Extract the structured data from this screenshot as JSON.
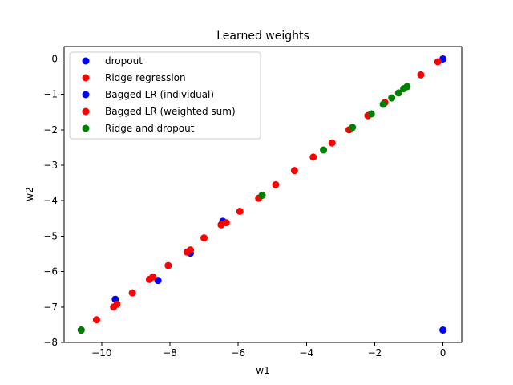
{
  "chart_data": {
    "type": "scatter",
    "title": "Learned weights",
    "xlabel": "w1",
    "ylabel": "w2",
    "xlim": [
      -11.1,
      0.55
    ],
    "ylim": [
      -8.0,
      0.35
    ],
    "xticks": [
      -10,
      -8,
      -6,
      -4,
      -2,
      0
    ],
    "yticks": [
      0,
      -1,
      -2,
      -3,
      -4,
      -5,
      -6,
      -7,
      -8
    ],
    "x_tick_labels": [
      "−10",
      "−8",
      "−6",
      "−4",
      "−2",
      "0"
    ],
    "y_tick_labels": [
      "0",
      "−1",
      "−2",
      "−3",
      "−4",
      "−5",
      "−6",
      "−7",
      "−8"
    ],
    "legend_position": "upper-left",
    "series": [
      {
        "name": "dropout",
        "color": "#0000ff",
        "points": [
          [
            0.0,
            0.0
          ],
          [
            0.0,
            -7.65
          ],
          [
            -6.45,
            -4.58
          ],
          [
            -7.4,
            -5.48
          ],
          [
            -8.35,
            -6.25
          ],
          [
            -9.6,
            -6.78
          ],
          [
            -10.6,
            -7.65
          ]
        ]
      },
      {
        "name": "Ridge regression",
        "color": "#ff0000",
        "points": [
          [
            -0.15,
            -0.08
          ],
          [
            -0.65,
            -0.45
          ],
          [
            -1.7,
            -1.23
          ],
          [
            -2.2,
            -1.6
          ],
          [
            -2.75,
            -2.0
          ],
          [
            -3.25,
            -2.37
          ],
          [
            -3.8,
            -2.77
          ],
          [
            -4.35,
            -3.15
          ],
          [
            -4.9,
            -3.55
          ],
          [
            -5.4,
            -3.93
          ],
          [
            -5.95,
            -4.3
          ],
          [
            -6.5,
            -4.68
          ],
          [
            -7.0,
            -5.05
          ],
          [
            -7.5,
            -5.45
          ],
          [
            -8.05,
            -5.83
          ],
          [
            -8.6,
            -6.22
          ],
          [
            -9.1,
            -6.6
          ],
          [
            -9.65,
            -7.0
          ],
          [
            -10.15,
            -7.36
          ]
        ]
      },
      {
        "name": "Bagged LR (individual)",
        "color": "#0000ff",
        "points": []
      },
      {
        "name": "Bagged LR (weighted sum)",
        "color": "#ff0000",
        "points": [
          [
            -6.35,
            -4.62
          ],
          [
            -7.4,
            -5.39
          ],
          [
            -8.5,
            -6.15
          ],
          [
            -9.55,
            -6.92
          ]
        ]
      },
      {
        "name": "Ridge and dropout",
        "color": "#008000",
        "points": [
          [
            -1.05,
            -0.78
          ],
          [
            -1.15,
            -0.84
          ],
          [
            -1.3,
            -0.96
          ],
          [
            -1.5,
            -1.1
          ],
          [
            -1.75,
            -1.28
          ],
          [
            -2.1,
            -1.55
          ],
          [
            -2.65,
            -1.93
          ],
          [
            -3.5,
            -2.57
          ],
          [
            -5.3,
            -3.85
          ],
          [
            -10.6,
            -7.65
          ]
        ]
      }
    ]
  }
}
